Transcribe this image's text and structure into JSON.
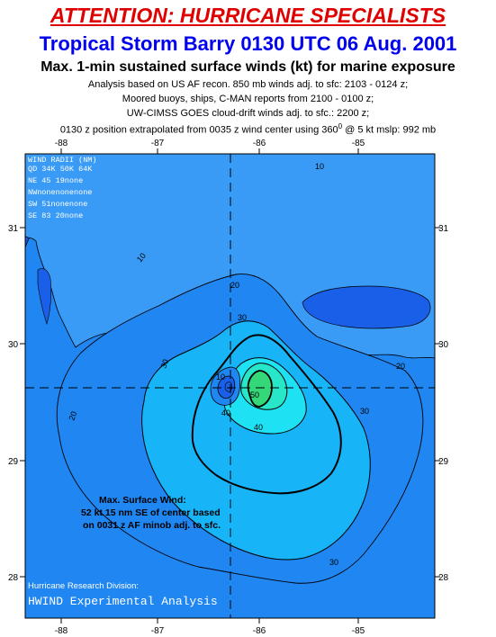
{
  "header": {
    "attention": "ATTENTION: HURRICANE SPECIALISTS",
    "storm_title": "Tropical Storm Barry 0130 UTC 06 Aug. 2001",
    "subtitle": "Max. 1-min sustained surface winds (kt) for marine exposure",
    "notes": [
      "Analysis based on US AF recon. 850 mb winds adj. to sfc: 2103 - 0124 z;",
      "Moored buoys, ships, C-MAN reports from  2100 - 0100 z;",
      "UW-CIMSS GOES cloud-drift winds adj. to sfc.: 2200 z;"
    ],
    "position_note_a": "0130 z position extrapolated from 0035 z wind center using 360",
    "position_note_deg": "0",
    "position_note_b": " @ 5 kt  mslp: 992 mb"
  },
  "map": {
    "lon_ticks": [
      "-88",
      "-87",
      "-86",
      "-85"
    ],
    "lat_ticks": [
      "31",
      "30",
      "29",
      "28"
    ],
    "contour_labels": [
      "10",
      "10",
      "10",
      "20",
      "20",
      "20",
      "30",
      "30",
      "30",
      "30",
      "40",
      "40",
      "50"
    ],
    "colors": {
      "water_10": "#1a5fe8",
      "water_20": "#1f86f2",
      "land": "#3a9bf6",
      "wind_30": "#18b4f8",
      "wind_40": "#1ee2f4",
      "wind_45": "#28e6c8",
      "wind_50": "#34d878"
    }
  },
  "wind_radii": {
    "header1": "WIND RADII (NM)",
    "header2": "QD 34K 50K 64K",
    "rows": [
      "NE  45  19none",
      "NWnonenonenone",
      "SW  51nonenone",
      "SE  83  20none"
    ]
  },
  "annotation": {
    "line1": "Max. Surface Wind:",
    "line2": "52 kt 15 nm SE of center based",
    "line3": "on 0031 z AF minob adj. to sfc."
  },
  "credit": {
    "line1": "Hurricane Research Division:",
    "line2": "HWIND Experimental Analysis"
  }
}
